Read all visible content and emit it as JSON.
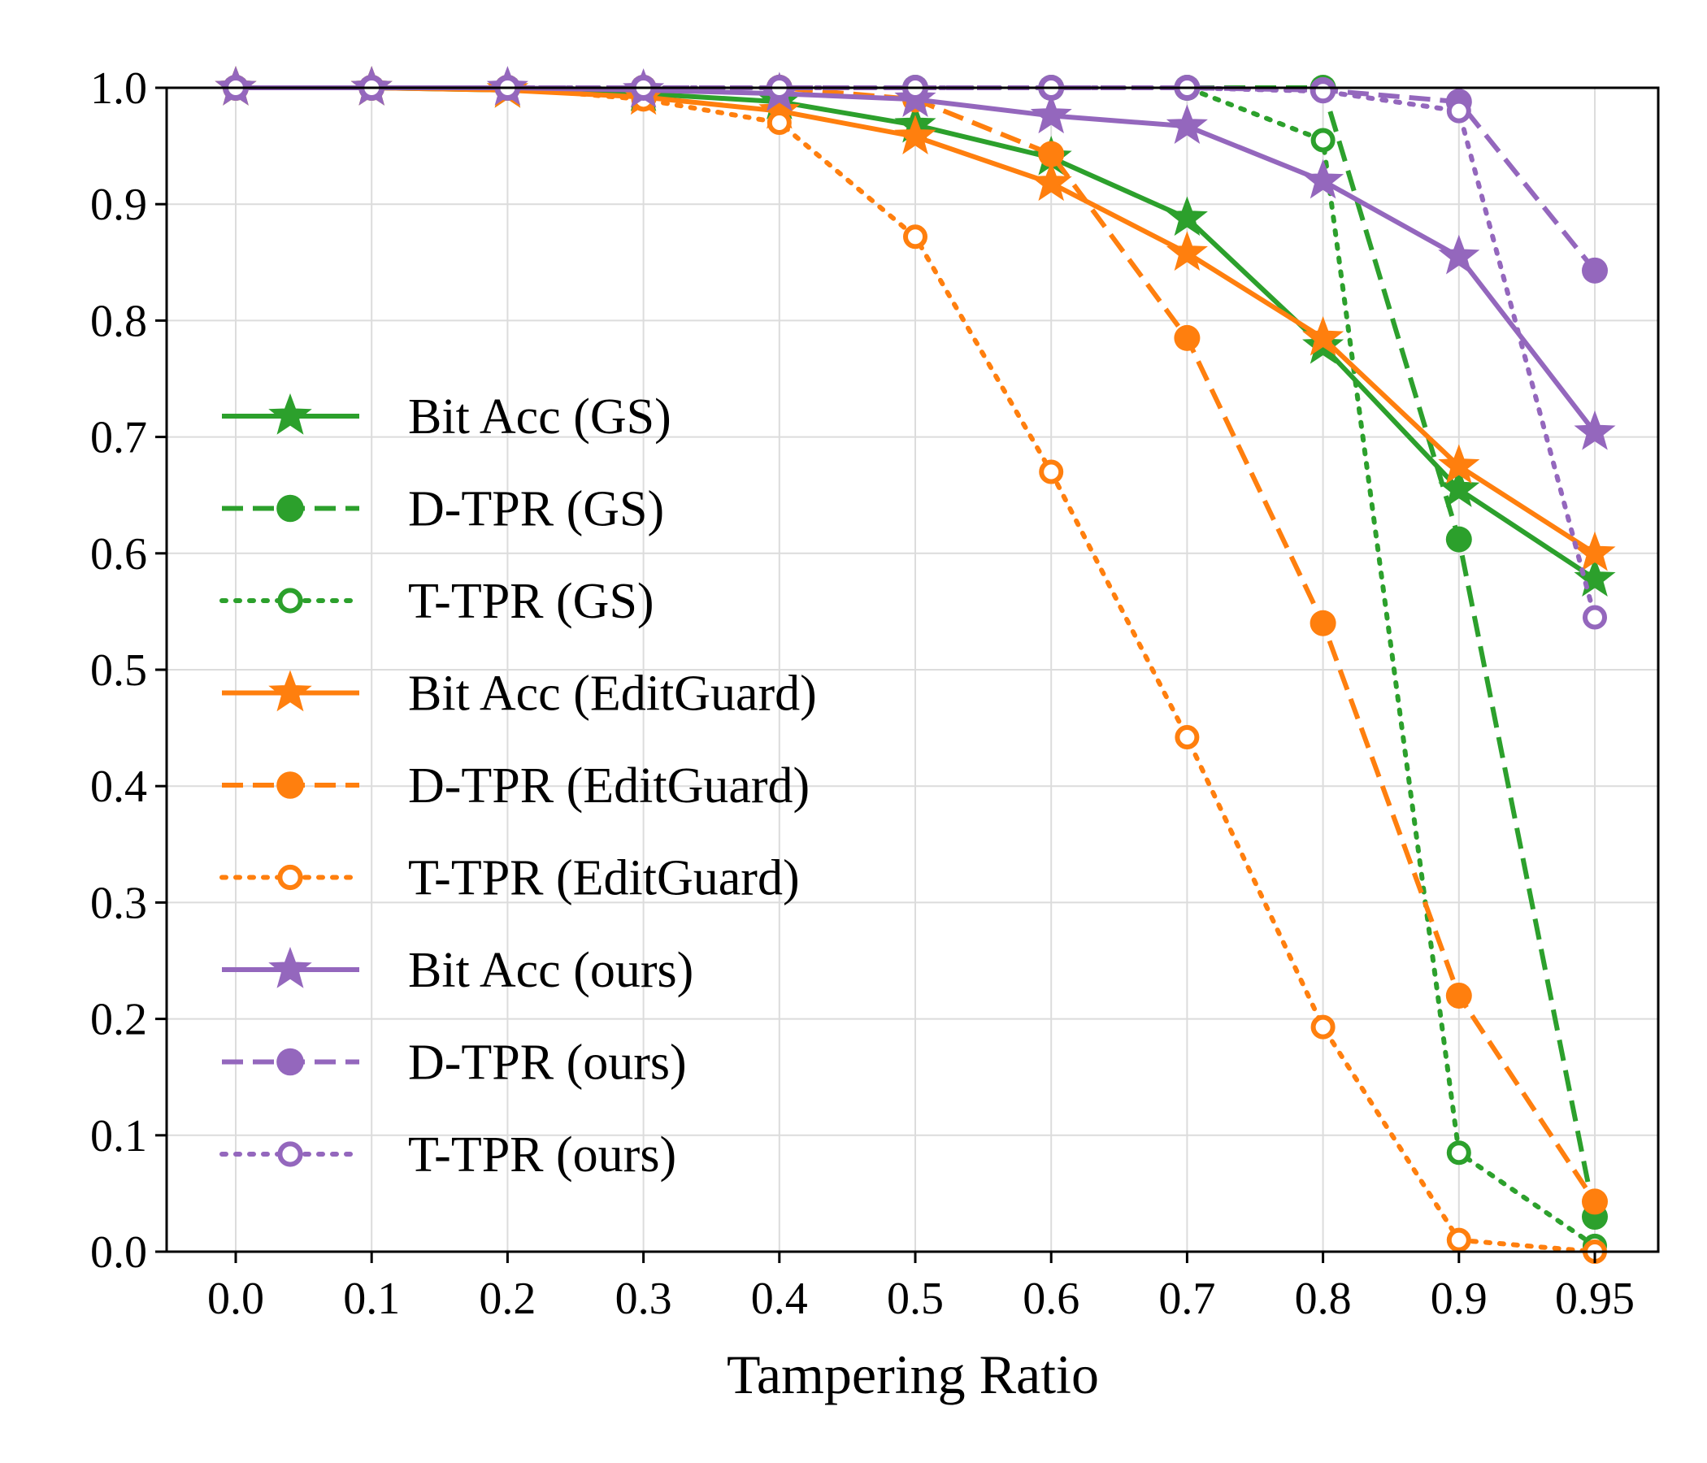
{
  "chart_data": {
    "type": "line",
    "title": "",
    "xlabel": "Tampering Ratio",
    "ylabel": "",
    "x": [
      0.0,
      0.1,
      0.2,
      0.3,
      0.4,
      0.5,
      0.6,
      0.7,
      0.8,
      0.9,
      0.95
    ],
    "x_tick_labels": [
      "0.0",
      "0.1",
      "0.2",
      "0.3",
      "0.4",
      "0.5",
      "0.6",
      "0.7",
      "0.8",
      "0.9",
      "0.95"
    ],
    "ylim": [
      0.0,
      1.0
    ],
    "y_ticks": [
      0.0,
      0.1,
      0.2,
      0.3,
      0.4,
      0.5,
      0.6,
      0.7,
      0.8,
      0.9,
      1.0
    ],
    "y_tick_labels": [
      "0.0",
      "0.1",
      "0.2",
      "0.3",
      "0.4",
      "0.5",
      "0.6",
      "0.7",
      "0.8",
      "0.9",
      "1.0"
    ],
    "grid": true,
    "legend_position": "center-left",
    "series": [
      {
        "name": "Bit Acc (GS)",
        "color": "#2ca02c",
        "linestyle": "solid",
        "marker": "star",
        "values": [
          1.0,
          1.0,
          0.998,
          0.995,
          0.988,
          0.968,
          0.94,
          0.888,
          0.778,
          0.655,
          0.578
        ]
      },
      {
        "name": "D-TPR (GS)",
        "color": "#2ca02c",
        "linestyle": "dashed",
        "marker": "circle",
        "values": [
          1.0,
          1.0,
          1.0,
          1.0,
          1.0,
          1.0,
          1.0,
          1.0,
          1.0,
          0.612,
          0.03
        ]
      },
      {
        "name": "T-TPR (GS)",
        "color": "#2ca02c",
        "linestyle": "dotted",
        "marker": "open-circle",
        "values": [
          1.0,
          1.0,
          1.0,
          1.0,
          1.0,
          1.0,
          1.0,
          1.0,
          0.955,
          0.085,
          0.005
        ]
      },
      {
        "name": "Bit Acc (EditGuard)",
        "color": "#ff7f0e",
        "linestyle": "solid",
        "marker": "star",
        "values": [
          1.0,
          1.0,
          0.998,
          0.992,
          0.98,
          0.958,
          0.918,
          0.858,
          0.785,
          0.675,
          0.6
        ]
      },
      {
        "name": "D-TPR (EditGuard)",
        "color": "#ff7f0e",
        "linestyle": "dashed",
        "marker": "circle",
        "values": [
          1.0,
          1.0,
          1.0,
          1.0,
          1.0,
          0.99,
          0.943,
          0.785,
          0.54,
          0.22,
          0.043
        ]
      },
      {
        "name": "T-TPR (EditGuard)",
        "color": "#ff7f0e",
        "linestyle": "dotted",
        "marker": "open-circle",
        "values": [
          1.0,
          1.0,
          1.0,
          0.99,
          0.97,
          0.872,
          0.67,
          0.442,
          0.193,
          0.01,
          0.0
        ]
      },
      {
        "name": "Bit Acc (ours)",
        "color": "#9467bd",
        "linestyle": "solid",
        "marker": "star",
        "values": [
          1.0,
          1.0,
          1.0,
          0.998,
          0.995,
          0.99,
          0.976,
          0.967,
          0.92,
          0.855,
          0.704
        ]
      },
      {
        "name": "D-TPR (ours)",
        "color": "#9467bd",
        "linestyle": "dashed",
        "marker": "circle",
        "values": [
          1.0,
          1.0,
          1.0,
          1.0,
          1.0,
          1.0,
          1.0,
          1.0,
          0.998,
          0.988,
          0.843
        ]
      },
      {
        "name": "T-TPR (ours)",
        "color": "#9467bd",
        "linestyle": "dotted",
        "marker": "open-circle",
        "values": [
          1.0,
          1.0,
          1.0,
          1.0,
          1.0,
          1.0,
          1.0,
          1.0,
          0.997,
          0.98,
          0.545
        ]
      }
    ]
  }
}
